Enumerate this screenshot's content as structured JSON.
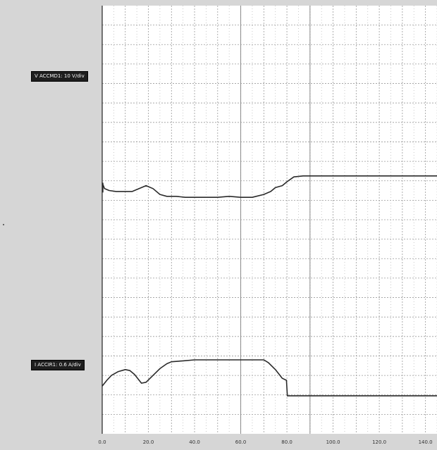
{
  "chart_data": {
    "type": "line",
    "xlim": [
      0,
      145
    ],
    "x_ticks": [
      "0.0",
      "20.0",
      "40.0",
      "60.0",
      "80.0",
      "100.0",
      "120.0",
      "140.0"
    ],
    "x_tick_values": [
      0,
      20,
      40,
      60,
      80,
      100,
      120,
      140
    ],
    "divisions_vertical": 22,
    "grid": true,
    "channels": [
      {
        "label": "V ACCMD1: 10 V/div",
        "color": "#2a2a2a",
        "x": [
          0,
          1,
          3,
          6,
          10,
          13,
          16,
          19,
          22,
          25,
          28,
          32,
          36,
          40,
          45,
          50,
          55,
          60,
          65,
          70,
          73,
          75,
          78,
          80,
          83,
          87,
          90,
          95,
          100,
          110,
          120,
          130,
          140,
          145
        ],
        "y_div": [
          12.9,
          12.6,
          12.5,
          12.45,
          12.45,
          12.45,
          12.6,
          12.75,
          12.6,
          12.3,
          12.2,
          12.2,
          12.15,
          12.15,
          12.15,
          12.15,
          12.2,
          12.15,
          12.15,
          12.3,
          12.45,
          12.65,
          12.75,
          12.95,
          13.2,
          13.25,
          13.25,
          13.25,
          13.25,
          13.25,
          13.25,
          13.25,
          13.25,
          13.25
        ]
      },
      {
        "label": "I ACCIR1: 0.6 A/div",
        "color": "#2a2a2a",
        "x": [
          0,
          2,
          4,
          7,
          10,
          12,
          14,
          16,
          17,
          19,
          22,
          25,
          28,
          30,
          35,
          40,
          50,
          60,
          70,
          72,
          75,
          78,
          79.8,
          80.2,
          85,
          90,
          100,
          120,
          140,
          145
        ],
        "y_div": [
          2.45,
          2.75,
          3.0,
          3.2,
          3.3,
          3.25,
          3.05,
          2.75,
          2.6,
          2.65,
          3.0,
          3.35,
          3.6,
          3.7,
          3.75,
          3.8,
          3.8,
          3.8,
          3.8,
          3.65,
          3.3,
          2.85,
          2.75,
          1.95,
          1.95,
          1.95,
          1.95,
          1.95,
          1.95,
          1.95
        ]
      }
    ]
  }
}
